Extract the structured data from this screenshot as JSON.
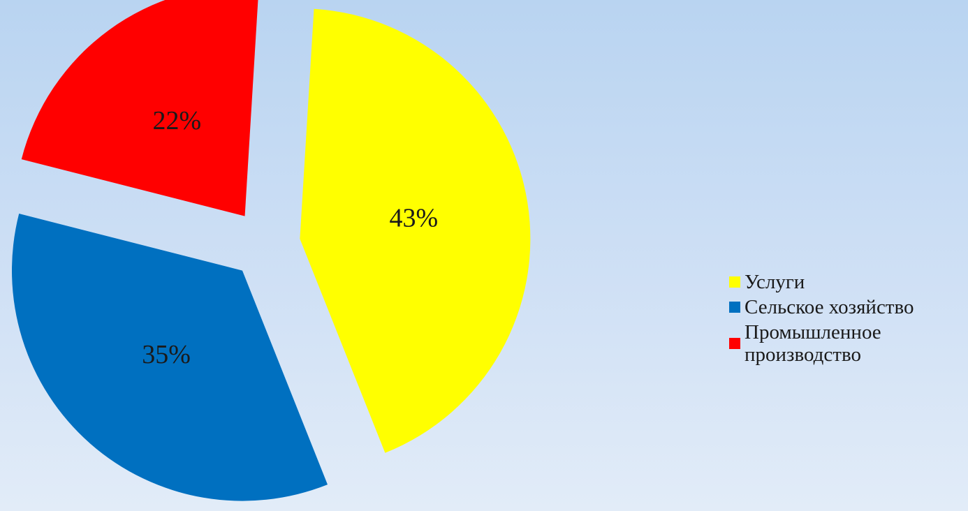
{
  "chart_data": {
    "type": "pie",
    "exploded": true,
    "slices": [
      {
        "name": "Услуги",
        "value": 43,
        "label": "43%",
        "color": "#ffff00"
      },
      {
        "name": "Сельское хозяйство",
        "value": 35,
        "label": "35%",
        "color": "#0070c0"
      },
      {
        "name": "Промышленное производство",
        "value": 22,
        "label": "22%",
        "color": "#ff0000"
      }
    ],
    "legend_position": "right"
  }
}
